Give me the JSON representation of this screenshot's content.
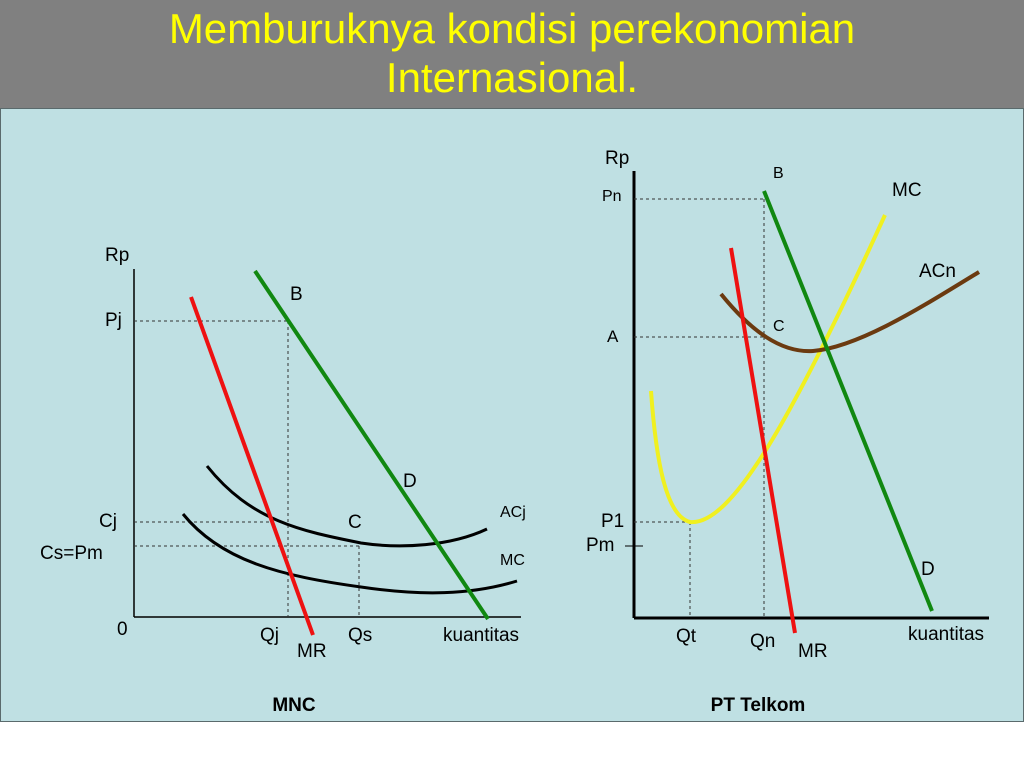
{
  "title": {
    "line1": "Memburuknya kondisi perekonomian",
    "line2": "Internasional."
  },
  "colors": {
    "title": "#ffff00",
    "header_bg": "#808080",
    "panel_bg": "#bfe0e3",
    "mr_line": "#ee1111",
    "demand_line": "#118811",
    "mc_pt_telkom": "#f0f020",
    "acn_curve": "#6b3a10"
  },
  "mnc": {
    "label": "MNC",
    "axis_y": "Rp",
    "axis_x": "kuantitas",
    "origin": "0",
    "price_labels": {
      "pj": "Pj",
      "cj": "Cj",
      "cs_pm": "Cs=Pm"
    },
    "qty_labels": {
      "qj": "Qj",
      "qs": "Qs"
    },
    "point_labels": {
      "b": "B",
      "c": "C",
      "d": "D"
    },
    "curve_labels": {
      "mr": "MR",
      "acj": "ACj",
      "mc": "MC"
    }
  },
  "pt_telkom": {
    "label": "PT Telkom",
    "axis_y": "Rp",
    "axis_x": "kuantitas",
    "price_labels": {
      "pn": "Pn",
      "a": "A",
      "p1": "P1",
      "pm": "Pm"
    },
    "qty_labels": {
      "qt": "Qt",
      "qn": "Qn"
    },
    "point_labels": {
      "b": "B",
      "c": "C",
      "d": "D"
    },
    "curve_labels": {
      "mr": "MR",
      "mc": "MC",
      "acn": "ACn"
    }
  }
}
